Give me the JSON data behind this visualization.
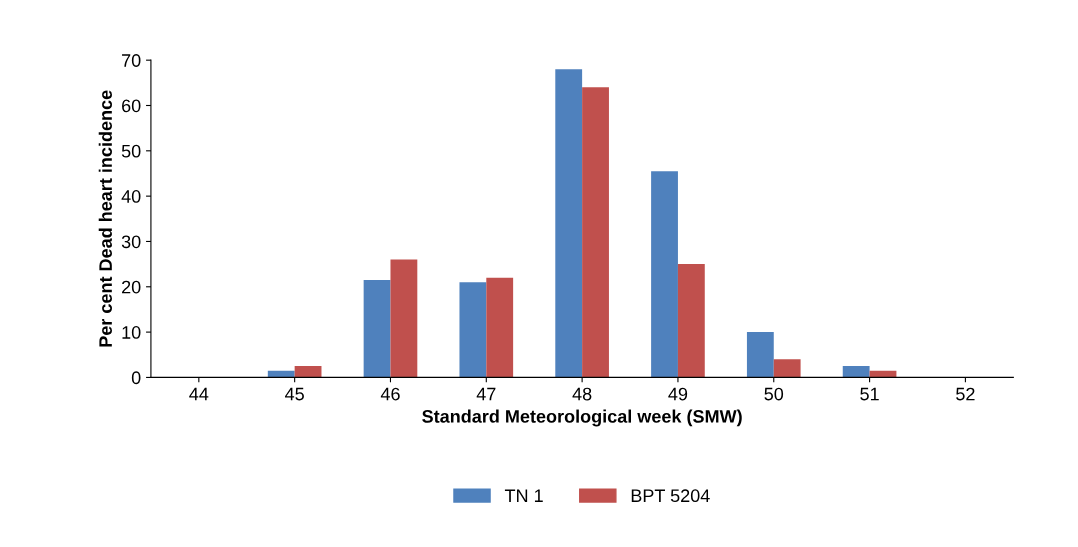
{
  "chart_data": {
    "type": "bar",
    "xlabel": "Standard Meteorological week (SMW)",
    "ylabel": "Per cent Dead heart incidence",
    "categories": [
      "44",
      "45",
      "46",
      "47",
      "48",
      "49",
      "50",
      "51",
      "52"
    ],
    "series": [
      {
        "name": "TN 1",
        "color": "#4f81bd",
        "values": [
          0,
          1.5,
          21.5,
          21,
          68,
          45.5,
          10,
          2.5,
          0
        ]
      },
      {
        "name": "BPT 5204",
        "color": "#c0504d",
        "values": [
          0,
          2.5,
          26,
          22,
          64,
          25,
          4,
          1.5,
          0
        ]
      }
    ],
    "ylim": [
      0,
      70
    ],
    "yticks": [
      0,
      10,
      20,
      30,
      40,
      50,
      60,
      70
    ],
    "grid": false,
    "legend": "bottom"
  }
}
